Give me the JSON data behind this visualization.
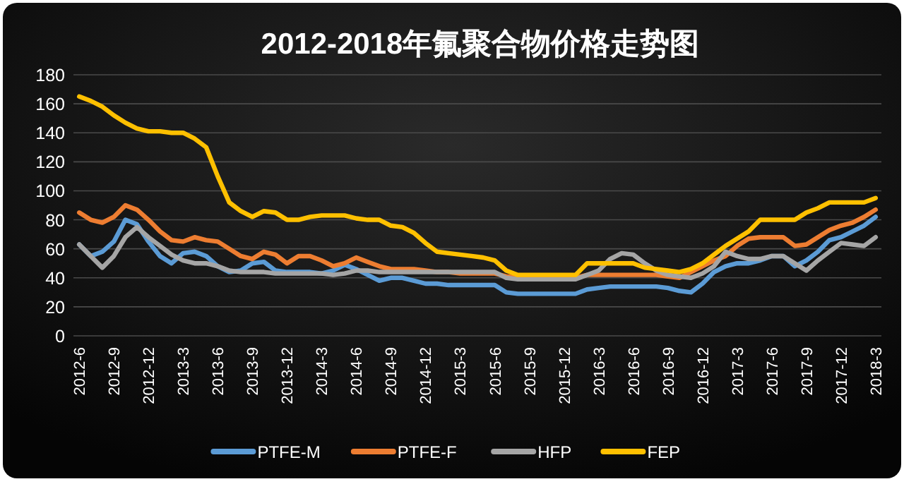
{
  "chart_data": {
    "type": "line",
    "title": "2012-2018年氟聚合物价格走势图",
    "categories": [
      "2012-6",
      null,
      null,
      "2012-9",
      null,
      null,
      "2012-12",
      null,
      null,
      "2013-3",
      null,
      null,
      "2013-6",
      null,
      null,
      "2013-9",
      null,
      null,
      "2013-12",
      null,
      null,
      "2014-3",
      null,
      null,
      "2014-6",
      null,
      null,
      "2014-9",
      null,
      null,
      "2014-12",
      null,
      null,
      "2015-3",
      null,
      null,
      "2015-6",
      null,
      null,
      "2015-9",
      null,
      null,
      "2015-12",
      null,
      null,
      "2016-3",
      null,
      null,
      "2016-6",
      null,
      null,
      "2016-9",
      null,
      null,
      "2016-12",
      null,
      null,
      "2017-3",
      null,
      null,
      "2017-6",
      null,
      null,
      "2017-9",
      null,
      null,
      "2017-12",
      null,
      null,
      "2018-3"
    ],
    "series": [
      {
        "name": "PTFE-M",
        "color": "#5b9bd5",
        "values": [
          63,
          55,
          58,
          65,
          80,
          77,
          65,
          55,
          50,
          57,
          58,
          55,
          48,
          44,
          45,
          50,
          51,
          45,
          44,
          44,
          44,
          43,
          45,
          49,
          46,
          42,
          38,
          40,
          40,
          38,
          36,
          36,
          35,
          35,
          35,
          35,
          35,
          30,
          29,
          29,
          29,
          29,
          29,
          29,
          32,
          33,
          34,
          34,
          34,
          34,
          34,
          33,
          31,
          30,
          36,
          44,
          48,
          50,
          50,
          52,
          55,
          55,
          48,
          52,
          58,
          66,
          68,
          72,
          76,
          82
        ]
      },
      {
        "name": "PTFE-F",
        "color": "#ed7d31",
        "values": [
          85,
          80,
          78,
          82,
          90,
          87,
          80,
          72,
          66,
          65,
          68,
          66,
          65,
          60,
          55,
          53,
          58,
          56,
          50,
          55,
          55,
          52,
          48,
          50,
          54,
          51,
          48,
          46,
          46,
          46,
          45,
          44,
          44,
          43,
          43,
          43,
          43,
          41,
          40,
          40,
          40,
          40,
          40,
          40,
          42,
          42,
          42,
          42,
          42,
          42,
          42,
          41,
          40,
          44,
          48,
          52,
          55,
          62,
          67,
          68,
          68,
          68,
          62,
          63,
          68,
          73,
          76,
          78,
          82,
          87
        ]
      },
      {
        "name": "HFP",
        "color": "#a5a5a5",
        "values": [
          63,
          55,
          47,
          55,
          68,
          75,
          68,
          62,
          56,
          52,
          50,
          50,
          48,
          45,
          44,
          44,
          44,
          43,
          43,
          43,
          43,
          43,
          42,
          43,
          45,
          45,
          44,
          44,
          44,
          44,
          44,
          44,
          44,
          44,
          44,
          44,
          44,
          40,
          39,
          39,
          39,
          39,
          39,
          39,
          42,
          45,
          53,
          57,
          56,
          50,
          45,
          42,
          41,
          40,
          43,
          48,
          58,
          55,
          53,
          53,
          55,
          55,
          50,
          45,
          52,
          58,
          64,
          63,
          62,
          68
        ]
      },
      {
        "name": "FEP",
        "color": "#ffc000",
        "values": [
          165,
          162,
          158,
          152,
          147,
          143,
          141,
          141,
          140,
          140,
          136,
          130,
          110,
          92,
          86,
          82,
          86,
          85,
          80,
          80,
          82,
          83,
          83,
          83,
          81,
          80,
          80,
          76,
          75,
          71,
          64,
          58,
          57,
          56,
          55,
          54,
          52,
          45,
          42,
          42,
          42,
          42,
          42,
          42,
          50,
          50,
          50,
          50,
          50,
          47,
          46,
          45,
          44,
          46,
          50,
          56,
          62,
          67,
          72,
          80,
          80,
          80,
          80,
          85,
          88,
          92,
          92,
          92,
          92,
          95
        ]
      }
    ],
    "ylim": [
      0,
      180
    ],
    "yticks": [
      0,
      20,
      40,
      60,
      80,
      100,
      120,
      140,
      160,
      180
    ],
    "grid": "y",
    "legend": "bottom",
    "line_style": "solid"
  }
}
